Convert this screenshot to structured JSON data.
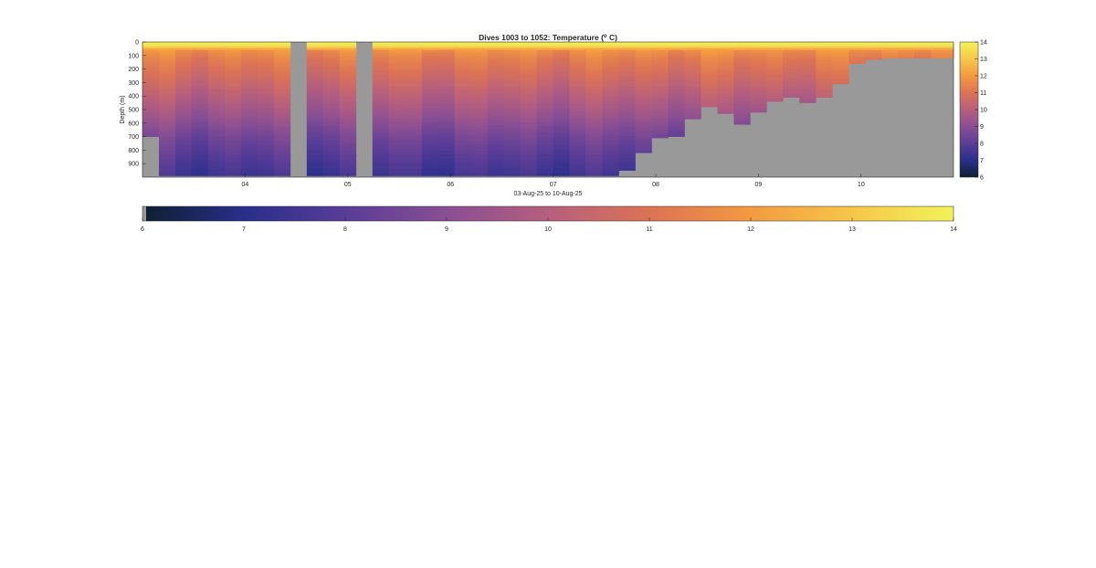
{
  "chart_data": {
    "type": "heatmap",
    "title": "Dives 1003 to 1052: Temperature (",
    "title_sup": "o",
    "title_end": " C)",
    "ylabel": "Depth (m)",
    "xlabel": "03-Aug-25 to 10-Aug-25",
    "x_range_days": [
      3.0,
      10.9
    ],
    "y_range_m": [
      0,
      1000
    ],
    "y_reversed": true,
    "x_ticks": [
      {
        "day": 4,
        "label": "04"
      },
      {
        "day": 5,
        "label": "05"
      },
      {
        "day": 6,
        "label": "06"
      },
      {
        "day": 7,
        "label": "07"
      },
      {
        "day": 8,
        "label": "08"
      },
      {
        "day": 9,
        "label": "09"
      },
      {
        "day": 10,
        "label": "10"
      }
    ],
    "y_ticks": [
      {
        "value": 0,
        "label": "0"
      },
      {
        "value": 100,
        "label": "100"
      },
      {
        "value": 200,
        "label": "200"
      },
      {
        "value": 300,
        "label": "300"
      },
      {
        "value": 400,
        "label": "400"
      },
      {
        "value": 500,
        "label": "500"
      },
      {
        "value": 600,
        "label": "600"
      },
      {
        "value": 700,
        "label": "700"
      },
      {
        "value": 800,
        "label": "800"
      },
      {
        "value": 900,
        "label": "900"
      }
    ],
    "color_range": [
      6,
      14
    ],
    "no_data_color": "#999999",
    "colormap": [
      "#0f1f33",
      "#2a2f8c",
      "#5a3d97",
      "#8a4f93",
      "#b75f7d",
      "#dc7355",
      "#f49a40",
      "#f6c749",
      "#f2f25a"
    ],
    "colorbar_right_ticks": [
      "6",
      "7",
      "8",
      "9",
      "10",
      "11",
      "12",
      "13",
      "14"
    ],
    "colorbar_bottom_ticks": [
      "6",
      "7",
      "8",
      "9",
      "10",
      "11",
      "12",
      "13",
      "14"
    ],
    "profiles": {
      "description_fields": [
        "start_day",
        "end_day",
        "max_depth_m"
      ],
      "columns": [
        [
          3.0,
          3.16,
          700
        ],
        [
          3.16,
          3.32,
          990
        ],
        [
          3.32,
          3.48,
          990
        ],
        [
          3.48,
          3.64,
          990
        ],
        [
          3.64,
          3.8,
          990
        ],
        [
          3.8,
          3.96,
          990
        ],
        [
          3.96,
          4.12,
          990
        ],
        [
          4.12,
          4.28,
          990
        ],
        [
          4.28,
          4.44,
          990
        ],
        [
          4.44,
          4.6,
          0
        ],
        [
          4.6,
          4.76,
          990
        ],
        [
          4.76,
          4.92,
          990
        ],
        [
          4.92,
          5.08,
          990
        ],
        [
          5.08,
          5.24,
          0
        ],
        [
          5.24,
          5.4,
          990
        ],
        [
          5.4,
          5.56,
          990
        ],
        [
          5.56,
          5.72,
          990
        ],
        [
          5.72,
          5.88,
          990
        ],
        [
          5.88,
          6.04,
          990
        ],
        [
          6.04,
          6.2,
          990
        ],
        [
          6.2,
          6.36,
          990
        ],
        [
          6.36,
          6.52,
          990
        ],
        [
          6.52,
          6.68,
          990
        ],
        [
          6.68,
          6.84,
          990
        ],
        [
          6.84,
          7.0,
          990
        ],
        [
          7.0,
          7.16,
          990
        ],
        [
          7.16,
          7.32,
          990
        ],
        [
          7.32,
          7.48,
          990
        ],
        [
          7.48,
          7.64,
          990
        ],
        [
          7.64,
          7.8,
          950
        ],
        [
          7.8,
          7.96,
          820
        ],
        [
          7.96,
          8.12,
          710
        ],
        [
          8.12,
          8.28,
          700
        ],
        [
          8.28,
          8.44,
          570
        ],
        [
          8.44,
          8.6,
          480
        ],
        [
          8.6,
          8.76,
          530
        ],
        [
          8.76,
          8.92,
          610
        ],
        [
          8.92,
          9.08,
          520
        ],
        [
          9.08,
          9.24,
          440
        ],
        [
          9.24,
          9.4,
          410
        ],
        [
          9.4,
          9.56,
          450
        ],
        [
          9.56,
          9.72,
          410
        ],
        [
          9.72,
          9.88,
          310
        ],
        [
          9.88,
          10.04,
          160
        ],
        [
          10.04,
          10.2,
          130
        ],
        [
          10.2,
          10.36,
          120
        ],
        [
          10.36,
          10.52,
          120
        ],
        [
          10.52,
          10.68,
          120
        ],
        [
          10.68,
          10.9,
          120
        ]
      ]
    },
    "temperature_profile_typical": {
      "depth_m": [
        0,
        30,
        60,
        120,
        250,
        400,
        550,
        700,
        850,
        990
      ],
      "temp_c": [
        13.9,
        13.6,
        11.8,
        11.3,
        10.7,
        10.0,
        9.3,
        8.5,
        7.9,
        7.4
      ]
    }
  }
}
